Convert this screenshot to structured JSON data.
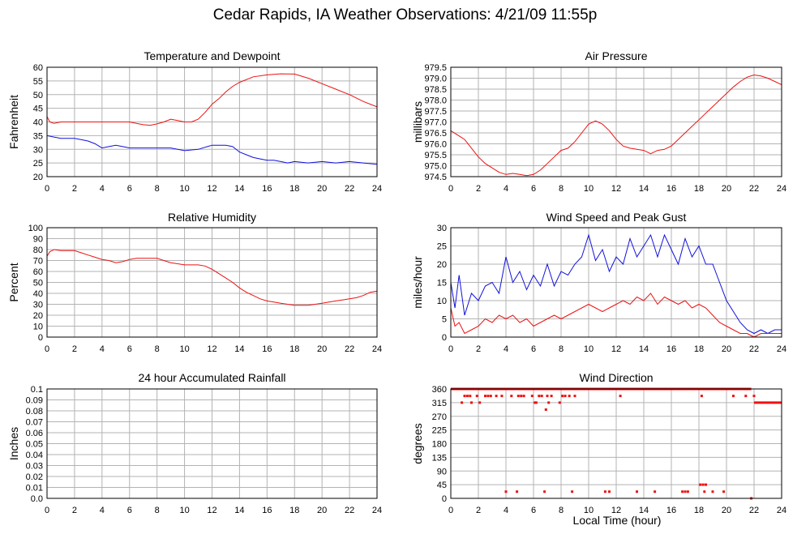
{
  "title": "Cedar Rapids, IA Weather Observations: 4/21/09 11:55p",
  "xlabel": "Local Time (hour)",
  "colors": {
    "red": "#ee1111",
    "blue": "#1111dd",
    "grid": "#b3b3b3"
  },
  "chart_data": [
    {
      "id": "temp",
      "type": "line",
      "title": "Temperature and Dewpoint",
      "ylabel": "Fahrenheit",
      "xlim": [
        0,
        24
      ],
      "ylim": [
        20,
        60
      ],
      "xticks": [
        0,
        2,
        4,
        6,
        8,
        10,
        12,
        14,
        16,
        18,
        20,
        22,
        24
      ],
      "yticks": [
        20,
        25,
        30,
        35,
        40,
        45,
        50,
        55,
        60
      ],
      "ytick_labels": [
        "20",
        "25",
        "30",
        "35",
        "40",
        "45",
        "50",
        "55",
        "60"
      ],
      "grid": true,
      "series": [
        {
          "color": "#ee1111",
          "x": [
            0,
            0.2,
            0.5,
            1,
            2,
            3,
            4,
            5,
            6,
            6.5,
            7,
            7.5,
            8,
            8.5,
            9,
            9.5,
            10,
            10.5,
            11,
            11.5,
            12,
            12.5,
            13,
            13.5,
            14,
            15,
            16,
            17,
            18,
            19,
            20,
            21,
            22,
            23,
            24
          ],
          "y": [
            42,
            40,
            39.5,
            40,
            40,
            40,
            40,
            40,
            40,
            39.5,
            39,
            38.8,
            39.3,
            40,
            41,
            40.5,
            40,
            40,
            41,
            43.5,
            46.5,
            48.5,
            51,
            53,
            54.5,
            56.5,
            57.2,
            57.6,
            57.5,
            56,
            54,
            52,
            50,
            47.5,
            45.5
          ]
        },
        {
          "color": "#1111dd",
          "x": [
            0,
            0.5,
            1,
            2,
            2.5,
            3,
            3.5,
            4,
            4.5,
            5,
            5.5,
            6,
            7,
            8,
            9,
            10,
            11,
            12,
            13,
            13.5,
            14,
            14.5,
            15,
            15.5,
            16,
            16.5,
            17,
            17.5,
            18,
            19,
            20,
            21,
            22,
            23,
            24
          ],
          "y": [
            35,
            34.5,
            34,
            34,
            33.5,
            33,
            32,
            30.5,
            31,
            31.5,
            31,
            30.5,
            30.5,
            30.5,
            30.5,
            29.5,
            30,
            31.5,
            31.5,
            31,
            29,
            28,
            27,
            26.5,
            26,
            26,
            25.5,
            25,
            25.5,
            25,
            25.5,
            25,
            25.5,
            25,
            24.5
          ]
        }
      ]
    },
    {
      "id": "pressure",
      "type": "line",
      "title": "Air Pressure",
      "ylabel": "millibars",
      "xlim": [
        0,
        24
      ],
      "ylim": [
        974.5,
        979.5
      ],
      "xticks": [
        0,
        2,
        4,
        6,
        8,
        10,
        12,
        14,
        16,
        18,
        20,
        22,
        24
      ],
      "yticks": [
        974.5,
        975.0,
        975.5,
        976.0,
        976.5,
        977.0,
        977.5,
        978.0,
        978.5,
        979.0,
        979.5
      ],
      "ytick_labels": [
        "974.5",
        "975.0",
        "975.5",
        "976.0",
        "976.5",
        "977.0",
        "977.5",
        "978.0",
        "978.5",
        "979.0",
        "979.5"
      ],
      "grid": true,
      "series": [
        {
          "color": "#ee1111",
          "x": [
            0,
            0.5,
            1,
            1.5,
            2,
            2.5,
            3,
            3.5,
            4,
            4.5,
            5,
            5.5,
            6,
            6.5,
            7,
            7.5,
            8,
            8.5,
            9,
            9.5,
            10,
            10.5,
            11,
            11.5,
            12,
            12.5,
            13,
            13.5,
            14,
            14.5,
            15,
            15.5,
            16,
            16.5,
            17,
            17.5,
            18,
            18.5,
            19,
            19.5,
            20,
            20.5,
            21,
            21.5,
            22,
            22.5,
            23,
            23.5,
            24
          ],
          "y": [
            976.6,
            976.4,
            976.2,
            975.8,
            975.4,
            975.1,
            974.9,
            974.7,
            974.6,
            974.65,
            974.6,
            974.55,
            974.6,
            974.8,
            975.1,
            975.4,
            975.7,
            975.8,
            976.1,
            976.5,
            976.9,
            977.05,
            976.9,
            976.6,
            976.2,
            975.9,
            975.8,
            975.75,
            975.7,
            975.55,
            975.7,
            975.75,
            975.9,
            976.2,
            976.5,
            976.8,
            977.1,
            977.4,
            977.7,
            978.0,
            978.3,
            978.6,
            978.85,
            979.05,
            979.15,
            979.1,
            979.0,
            978.85,
            978.7
          ]
        }
      ]
    },
    {
      "id": "humidity",
      "type": "line",
      "title": "Relative Humidity",
      "ylabel": "Percent",
      "xlim": [
        0,
        24
      ],
      "ylim": [
        0,
        100
      ],
      "xticks": [
        0,
        2,
        4,
        6,
        8,
        10,
        12,
        14,
        16,
        18,
        20,
        22,
        24
      ],
      "yticks": [
        0,
        10,
        20,
        30,
        40,
        50,
        60,
        70,
        80,
        90,
        100
      ],
      "ytick_labels": [
        "0",
        "10",
        "20",
        "30",
        "40",
        "50",
        "60",
        "70",
        "80",
        "90",
        "100"
      ],
      "grid": true,
      "series": [
        {
          "color": "#ee1111",
          "x": [
            0,
            0.2,
            0.5,
            1,
            1.5,
            2,
            2.5,
            3,
            3.5,
            4,
            4.5,
            5,
            5.5,
            6,
            6.5,
            7,
            7.5,
            8,
            8.5,
            9,
            9.5,
            10,
            10.5,
            11,
            11.5,
            12,
            12.5,
            13,
            13.5,
            14,
            14.5,
            15,
            15.5,
            16,
            16.5,
            17,
            17.5,
            18,
            18.5,
            19,
            19.5,
            20,
            20.5,
            21,
            21.5,
            22,
            22.5,
            23,
            23.5,
            24
          ],
          "y": [
            74,
            78,
            80,
            79,
            79,
            79,
            77,
            75,
            73,
            71,
            70,
            68,
            69,
            71,
            72,
            72,
            72,
            72,
            70,
            68,
            67,
            66,
            66,
            66,
            65,
            62,
            58,
            54,
            50,
            45,
            41,
            38,
            35,
            33,
            32,
            31,
            30,
            29,
            29,
            29,
            30,
            31,
            32,
            33,
            34,
            35,
            36,
            38,
            41,
            42
          ]
        }
      ]
    },
    {
      "id": "wind",
      "type": "line",
      "title": "Wind Speed and Peak Gust",
      "ylabel": "miles/hour",
      "xlim": [
        0,
        24
      ],
      "ylim": [
        0,
        30
      ],
      "xticks": [
        0,
        2,
        4,
        6,
        8,
        10,
        12,
        14,
        16,
        18,
        20,
        22,
        24
      ],
      "yticks": [
        0,
        5,
        10,
        15,
        20,
        25,
        30
      ],
      "ytick_labels": [
        "0",
        "5",
        "10",
        "15",
        "20",
        "25",
        "30"
      ],
      "grid": true,
      "series": [
        {
          "color": "#1111dd",
          "x": [
            0,
            0.3,
            0.6,
            1,
            1.5,
            2,
            2.5,
            3,
            3.5,
            4,
            4.5,
            5,
            5.5,
            6,
            6.5,
            7,
            7.5,
            8,
            8.5,
            9,
            9.5,
            10,
            10.5,
            11,
            11.5,
            12,
            12.5,
            13,
            13.5,
            14,
            14.5,
            15,
            15.5,
            16,
            16.5,
            17,
            17.5,
            18,
            18.5,
            19,
            19.5,
            20,
            20.5,
            21,
            21.5,
            22,
            22.5,
            23,
            23.5,
            24
          ],
          "y": [
            15,
            8,
            17,
            6,
            12,
            10,
            14,
            15,
            12,
            22,
            15,
            18,
            13,
            17,
            14,
            20,
            14,
            18,
            17,
            20,
            22,
            28,
            21,
            24,
            18,
            22,
            20,
            27,
            22,
            25,
            28,
            22,
            28,
            24,
            20,
            27,
            22,
            25,
            20,
            20,
            15,
            10,
            7,
            4,
            2,
            1,
            2,
            1,
            2,
            2
          ]
        },
        {
          "color": "#ee1111",
          "x": [
            0,
            0.3,
            0.6,
            1,
            1.5,
            2,
            2.5,
            3,
            3.5,
            4,
            4.5,
            5,
            5.5,
            6,
            6.5,
            7,
            7.5,
            8,
            8.5,
            9,
            9.5,
            10,
            10.5,
            11,
            11.5,
            12,
            12.5,
            13,
            13.5,
            14,
            14.5,
            15,
            15.5,
            16,
            16.5,
            17,
            17.5,
            18,
            18.5,
            19,
            19.5,
            20,
            20.5,
            21,
            21.5,
            22,
            22.5,
            23,
            23.5,
            24
          ],
          "y": [
            8,
            3,
            4,
            1,
            2,
            3,
            5,
            4,
            6,
            5,
            6,
            4,
            5,
            3,
            4,
            5,
            6,
            5,
            6,
            7,
            8,
            9,
            8,
            7,
            8,
            9,
            10,
            9,
            11,
            10,
            12,
            9,
            11,
            10,
            9,
            10,
            8,
            9,
            8,
            6,
            4,
            3,
            2,
            1,
            1,
            0,
            1,
            1,
            1,
            1
          ]
        }
      ]
    },
    {
      "id": "rain",
      "type": "line",
      "title": "24 hour Accumulated Rainfall",
      "ylabel": "Inches",
      "xlim": [
        0,
        24
      ],
      "ylim": [
        0,
        0.1
      ],
      "xticks": [
        0,
        2,
        4,
        6,
        8,
        10,
        12,
        14,
        16,
        18,
        20,
        22,
        24
      ],
      "yticks": [
        0,
        0.01,
        0.02,
        0.03,
        0.04,
        0.05,
        0.06,
        0.07,
        0.08,
        0.09,
        0.1
      ],
      "ytick_labels": [
        "0.0",
        "0.01",
        "0.02",
        "0.03",
        "0.04",
        "0.05",
        "0.06",
        "0.07",
        "0.08",
        "0.09",
        "0.1"
      ],
      "grid": true,
      "series": [
        {
          "color": "#ee1111",
          "x": [
            0,
            24
          ],
          "y": [
            0,
            0
          ]
        }
      ]
    },
    {
      "id": "direction",
      "type": "scatter",
      "title": "Wind Direction",
      "ylabel": "degrees",
      "xlim": [
        0,
        24
      ],
      "ylim": [
        0,
        360
      ],
      "xticks": [
        0,
        2,
        4,
        6,
        8,
        10,
        12,
        14,
        16,
        18,
        20,
        22,
        24
      ],
      "yticks": [
        0,
        45,
        90,
        135,
        180,
        225,
        270,
        315,
        360
      ],
      "ytick_labels": [
        "0",
        "45",
        "90",
        "135",
        "180",
        "225",
        "270",
        "315",
        "360"
      ],
      "grid": true,
      "points": [
        [
          0.2,
          360
        ],
        [
          0.4,
          360
        ],
        [
          0.6,
          360
        ],
        [
          0.8,
          315
        ],
        [
          1.0,
          337
        ],
        [
          1.2,
          337
        ],
        [
          1.4,
          337
        ],
        [
          1.5,
          315
        ],
        [
          1.7,
          360
        ],
        [
          1.9,
          337
        ],
        [
          2.1,
          315
        ],
        [
          2.3,
          360
        ],
        [
          2.5,
          337
        ],
        [
          2.7,
          337
        ],
        [
          2.9,
          337
        ],
        [
          3.1,
          360
        ],
        [
          3.3,
          337
        ],
        [
          3.5,
          360
        ],
        [
          3.7,
          337
        ],
        [
          4.0,
          22
        ],
        [
          4.2,
          360
        ],
        [
          4.4,
          337
        ],
        [
          4.6,
          360
        ],
        [
          4.8,
          22
        ],
        [
          4.9,
          337
        ],
        [
          5.1,
          337
        ],
        [
          5.3,
          337
        ],
        [
          5.5,
          360
        ],
        [
          5.7,
          360
        ],
        [
          5.9,
          337
        ],
        [
          6.1,
          315
        ],
        [
          6.2,
          315
        ],
        [
          6.4,
          337
        ],
        [
          6.6,
          337
        ],
        [
          6.8,
          22
        ],
        [
          6.9,
          292
        ],
        [
          7.0,
          337
        ],
        [
          7.1,
          315
        ],
        [
          7.3,
          337
        ],
        [
          7.5,
          360
        ],
        [
          7.7,
          360
        ],
        [
          7.9,
          315
        ],
        [
          8.1,
          337
        ],
        [
          8.3,
          337
        ],
        [
          8.6,
          337
        ],
        [
          8.8,
          22
        ],
        [
          9.0,
          337
        ],
        [
          9.2,
          360
        ],
        [
          9.5,
          360
        ],
        [
          10.0,
          360
        ],
        [
          10.5,
          360
        ],
        [
          11.0,
          360
        ],
        [
          11.2,
          22
        ],
        [
          11.5,
          22
        ],
        [
          12.0,
          360
        ],
        [
          12.3,
          337
        ],
        [
          12.6,
          360
        ],
        [
          13.0,
          360
        ],
        [
          13.5,
          22
        ],
        [
          14.0,
          360
        ],
        [
          14.5,
          360
        ],
        [
          14.8,
          22
        ],
        [
          15.2,
          360
        ],
        [
          15.8,
          360
        ],
        [
          16.3,
          360
        ],
        [
          16.8,
          22
        ],
        [
          17.0,
          22
        ],
        [
          17.2,
          22
        ],
        [
          17.5,
          360
        ],
        [
          18.0,
          360
        ],
        [
          18.1,
          45
        ],
        [
          18.3,
          45
        ],
        [
          18.5,
          45
        ],
        [
          18.2,
          337
        ],
        [
          18.4,
          22
        ],
        [
          18.6,
          360
        ],
        [
          19.0,
          22
        ],
        [
          19.2,
          360
        ],
        [
          19.5,
          360
        ],
        [
          19.8,
          22
        ],
        [
          20.2,
          360
        ],
        [
          20.5,
          337
        ],
        [
          20.8,
          360
        ],
        [
          21.0,
          360
        ],
        [
          21.4,
          337
        ],
        [
          21.6,
          360
        ],
        [
          21.8,
          0
        ],
        [
          22.0,
          337
        ]
      ],
      "segments": [
        {
          "x1": 0,
          "x2": 21.8,
          "y": 360
        },
        {
          "x1": 22,
          "x2": 24,
          "y": 315
        }
      ]
    }
  ]
}
